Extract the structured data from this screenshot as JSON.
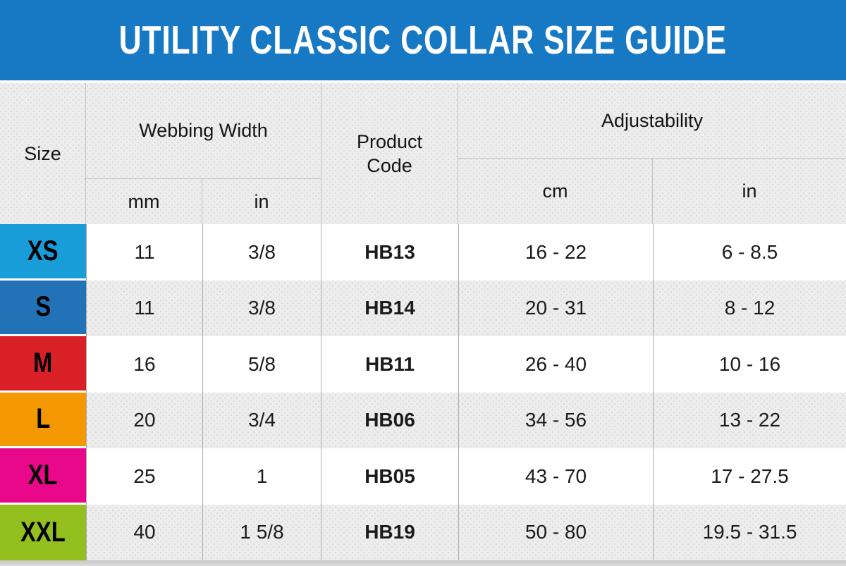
{
  "title": "UTILITY CLASSIC COLLAR SIZE GUIDE",
  "header": {
    "size_label": "Size",
    "webbing_width_label": "Webbing Width",
    "webbing_units": [
      "mm",
      "in"
    ],
    "product_code_label": "Product Code",
    "adjustability_label": "Adjustability",
    "adjustability_units": [
      "cm",
      "in"
    ]
  },
  "colors": {
    "banner": "#1779c4",
    "header_gray": "#ededed",
    "row_alt_gray": "#ededed",
    "grid_line": "#ababab",
    "bottom_strip": "#cccccc",
    "size_rows": [
      "#199dd9",
      "#2272b8",
      "#d92027",
      "#f39800",
      "#e9088a",
      "#93c01e"
    ]
  },
  "chart_data": {
    "type": "table",
    "title": "UTILITY CLASSIC COLLAR SIZE GUIDE",
    "columns": [
      "Size",
      "Webbing Width mm",
      "Webbing Width in",
      "Product Code",
      "Adjustability cm",
      "Adjustability in"
    ],
    "rows": [
      [
        "XS",
        "11",
        "3/8",
        "HB13",
        "16 - 22",
        "6 - 8.5"
      ],
      [
        "S",
        "11",
        "3/8",
        "HB14",
        "20 - 31",
        "8 - 12"
      ],
      [
        "M",
        "16",
        "5/8",
        "HB11",
        "26 - 40",
        "10 - 16"
      ],
      [
        "L",
        "20",
        "3/4",
        "HB06",
        "34 - 56",
        "13 - 22"
      ],
      [
        "XL",
        "25",
        "1",
        "HB05",
        "43 - 70",
        "17 - 27.5"
      ],
      [
        "XXL",
        "40",
        "1 5/8",
        "HB19",
        "50 - 80",
        "19.5 - 31.5"
      ]
    ]
  }
}
